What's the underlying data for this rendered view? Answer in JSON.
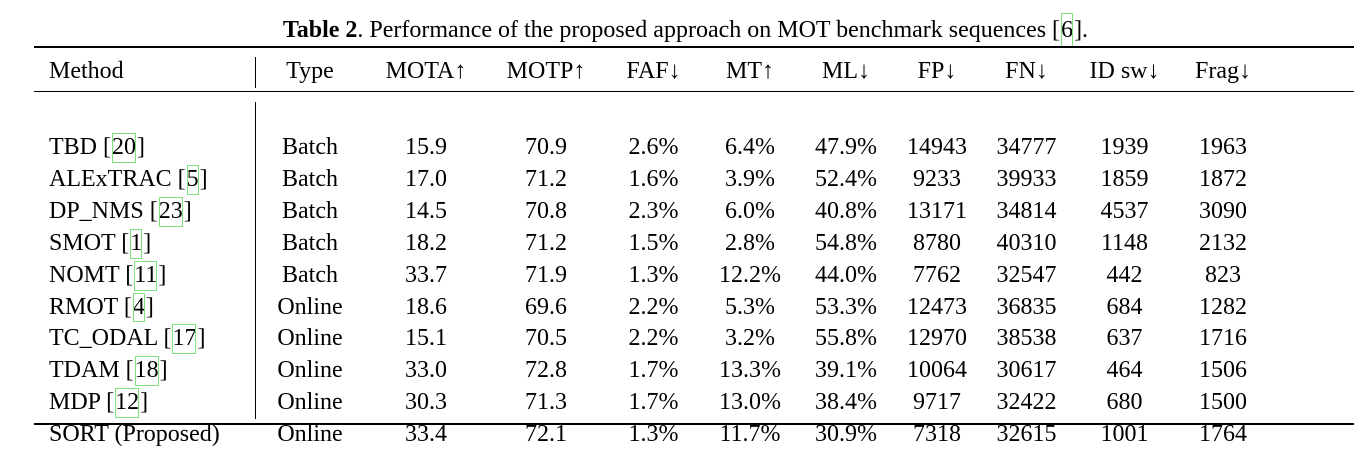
{
  "caption": {
    "label": "Table 2",
    "text_before_cite": ". Performance of the proposed approach on MOT benchmark sequences [",
    "cite": "6",
    "text_after_cite": "]."
  },
  "columns": [
    "Method",
    "Type",
    "MOTA↑",
    "MOTP↑",
    "FAF↓",
    "MT↑",
    "ML↓",
    "FP↓",
    "FN↓",
    "ID sw↓",
    "Frag↓"
  ],
  "rows": [
    {
      "method": "TBD",
      "ref": "20",
      "type": "Batch",
      "mota": "15.9",
      "motp": "70.9",
      "faf": "2.6%",
      "mt": "6.4%",
      "ml": "47.9%",
      "fp": "14943",
      "fn": "34777",
      "idsw": "1939",
      "frag": "1963",
      "bold": []
    },
    {
      "method": "ALExTRAC",
      "ref": "5",
      "type": "Batch",
      "mota": "17.0",
      "motp": "71.2",
      "faf": "1.6%",
      "mt": "3.9%",
      "ml": "52.4%",
      "fp": "9233",
      "fn": "39933",
      "idsw": "1859",
      "frag": "1872",
      "bold": []
    },
    {
      "method": "DP_NMS",
      "ref": "23",
      "type": "Batch",
      "mota": "14.5",
      "motp": "70.8",
      "faf": "2.3%",
      "mt": "6.0%",
      "ml": "40.8%",
      "fp": "13171",
      "fn": "34814",
      "idsw": "4537",
      "frag": "3090",
      "bold": []
    },
    {
      "method": "SMOT",
      "ref": "1",
      "type": "Batch",
      "mota": "18.2",
      "motp": "71.2",
      "faf": "1.5%",
      "mt": "2.8%",
      "ml": "54.8%",
      "fp": "8780",
      "fn": "40310",
      "idsw": "1148",
      "frag": "2132",
      "bold": []
    },
    {
      "method": "NOMT",
      "ref": "11",
      "type": "Batch",
      "mota": "33.7",
      "motp": "71.9",
      "faf": "1.3%",
      "mt": "12.2%",
      "ml": "44.0%",
      "fp": "7762",
      "fn": "32547",
      "idsw": "442",
      "frag": "823",
      "bold": [
        "mota",
        "faf",
        "idsw",
        "frag"
      ]
    },
    {
      "method": "RMOT",
      "ref": "4",
      "type": "Online",
      "mota": "18.6",
      "motp": "69.6",
      "faf": "2.2%",
      "mt": "5.3%",
      "ml": "53.3%",
      "fp": "12473",
      "fn": "36835",
      "idsw": "684",
      "frag": "1282",
      "bold": [
        "type"
      ]
    },
    {
      "method": "TC_ODAL",
      "ref": "17",
      "type": "Online",
      "mota": "15.1",
      "motp": "70.5",
      "faf": "2.2%",
      "mt": "3.2%",
      "ml": "55.8%",
      "fp": "12970",
      "fn": "38538",
      "idsw": "637",
      "frag": "1716",
      "bold": [
        "type"
      ]
    },
    {
      "method": "TDAM",
      "ref": "18",
      "type": "Online",
      "mota": "33.0",
      "motp": "72.8",
      "faf": "1.7%",
      "mt": "13.3%",
      "ml": "39.1%",
      "fp": "10064",
      "fn": "30617",
      "idsw": "464",
      "frag": "1506",
      "bold": [
        "type",
        "motp",
        "mt",
        "fn"
      ]
    },
    {
      "method": "MDP",
      "ref": "12",
      "type": "Online",
      "mota": "30.3",
      "motp": "71.3",
      "faf": "1.7%",
      "mt": "13.0%",
      "ml": "38.4%",
      "fp": "9717",
      "fn": "32422",
      "idsw": "680",
      "frag": "1500",
      "bold": [
        "type"
      ]
    },
    {
      "method": "SORT (Proposed)",
      "ref": "",
      "type": "Online",
      "mota": "33.4",
      "motp": "72.1",
      "faf": "1.3%",
      "mt": "11.7%",
      "ml": "30.9%",
      "fp": "7318",
      "fn": "32615",
      "idsw": "1001",
      "frag": "1764",
      "bold": [
        "type",
        "mota",
        "faf",
        "ml",
        "fp"
      ]
    }
  ],
  "colors": {
    "text": "#000000",
    "citation_box": "#7fe07f",
    "background": "#ffffff"
  }
}
